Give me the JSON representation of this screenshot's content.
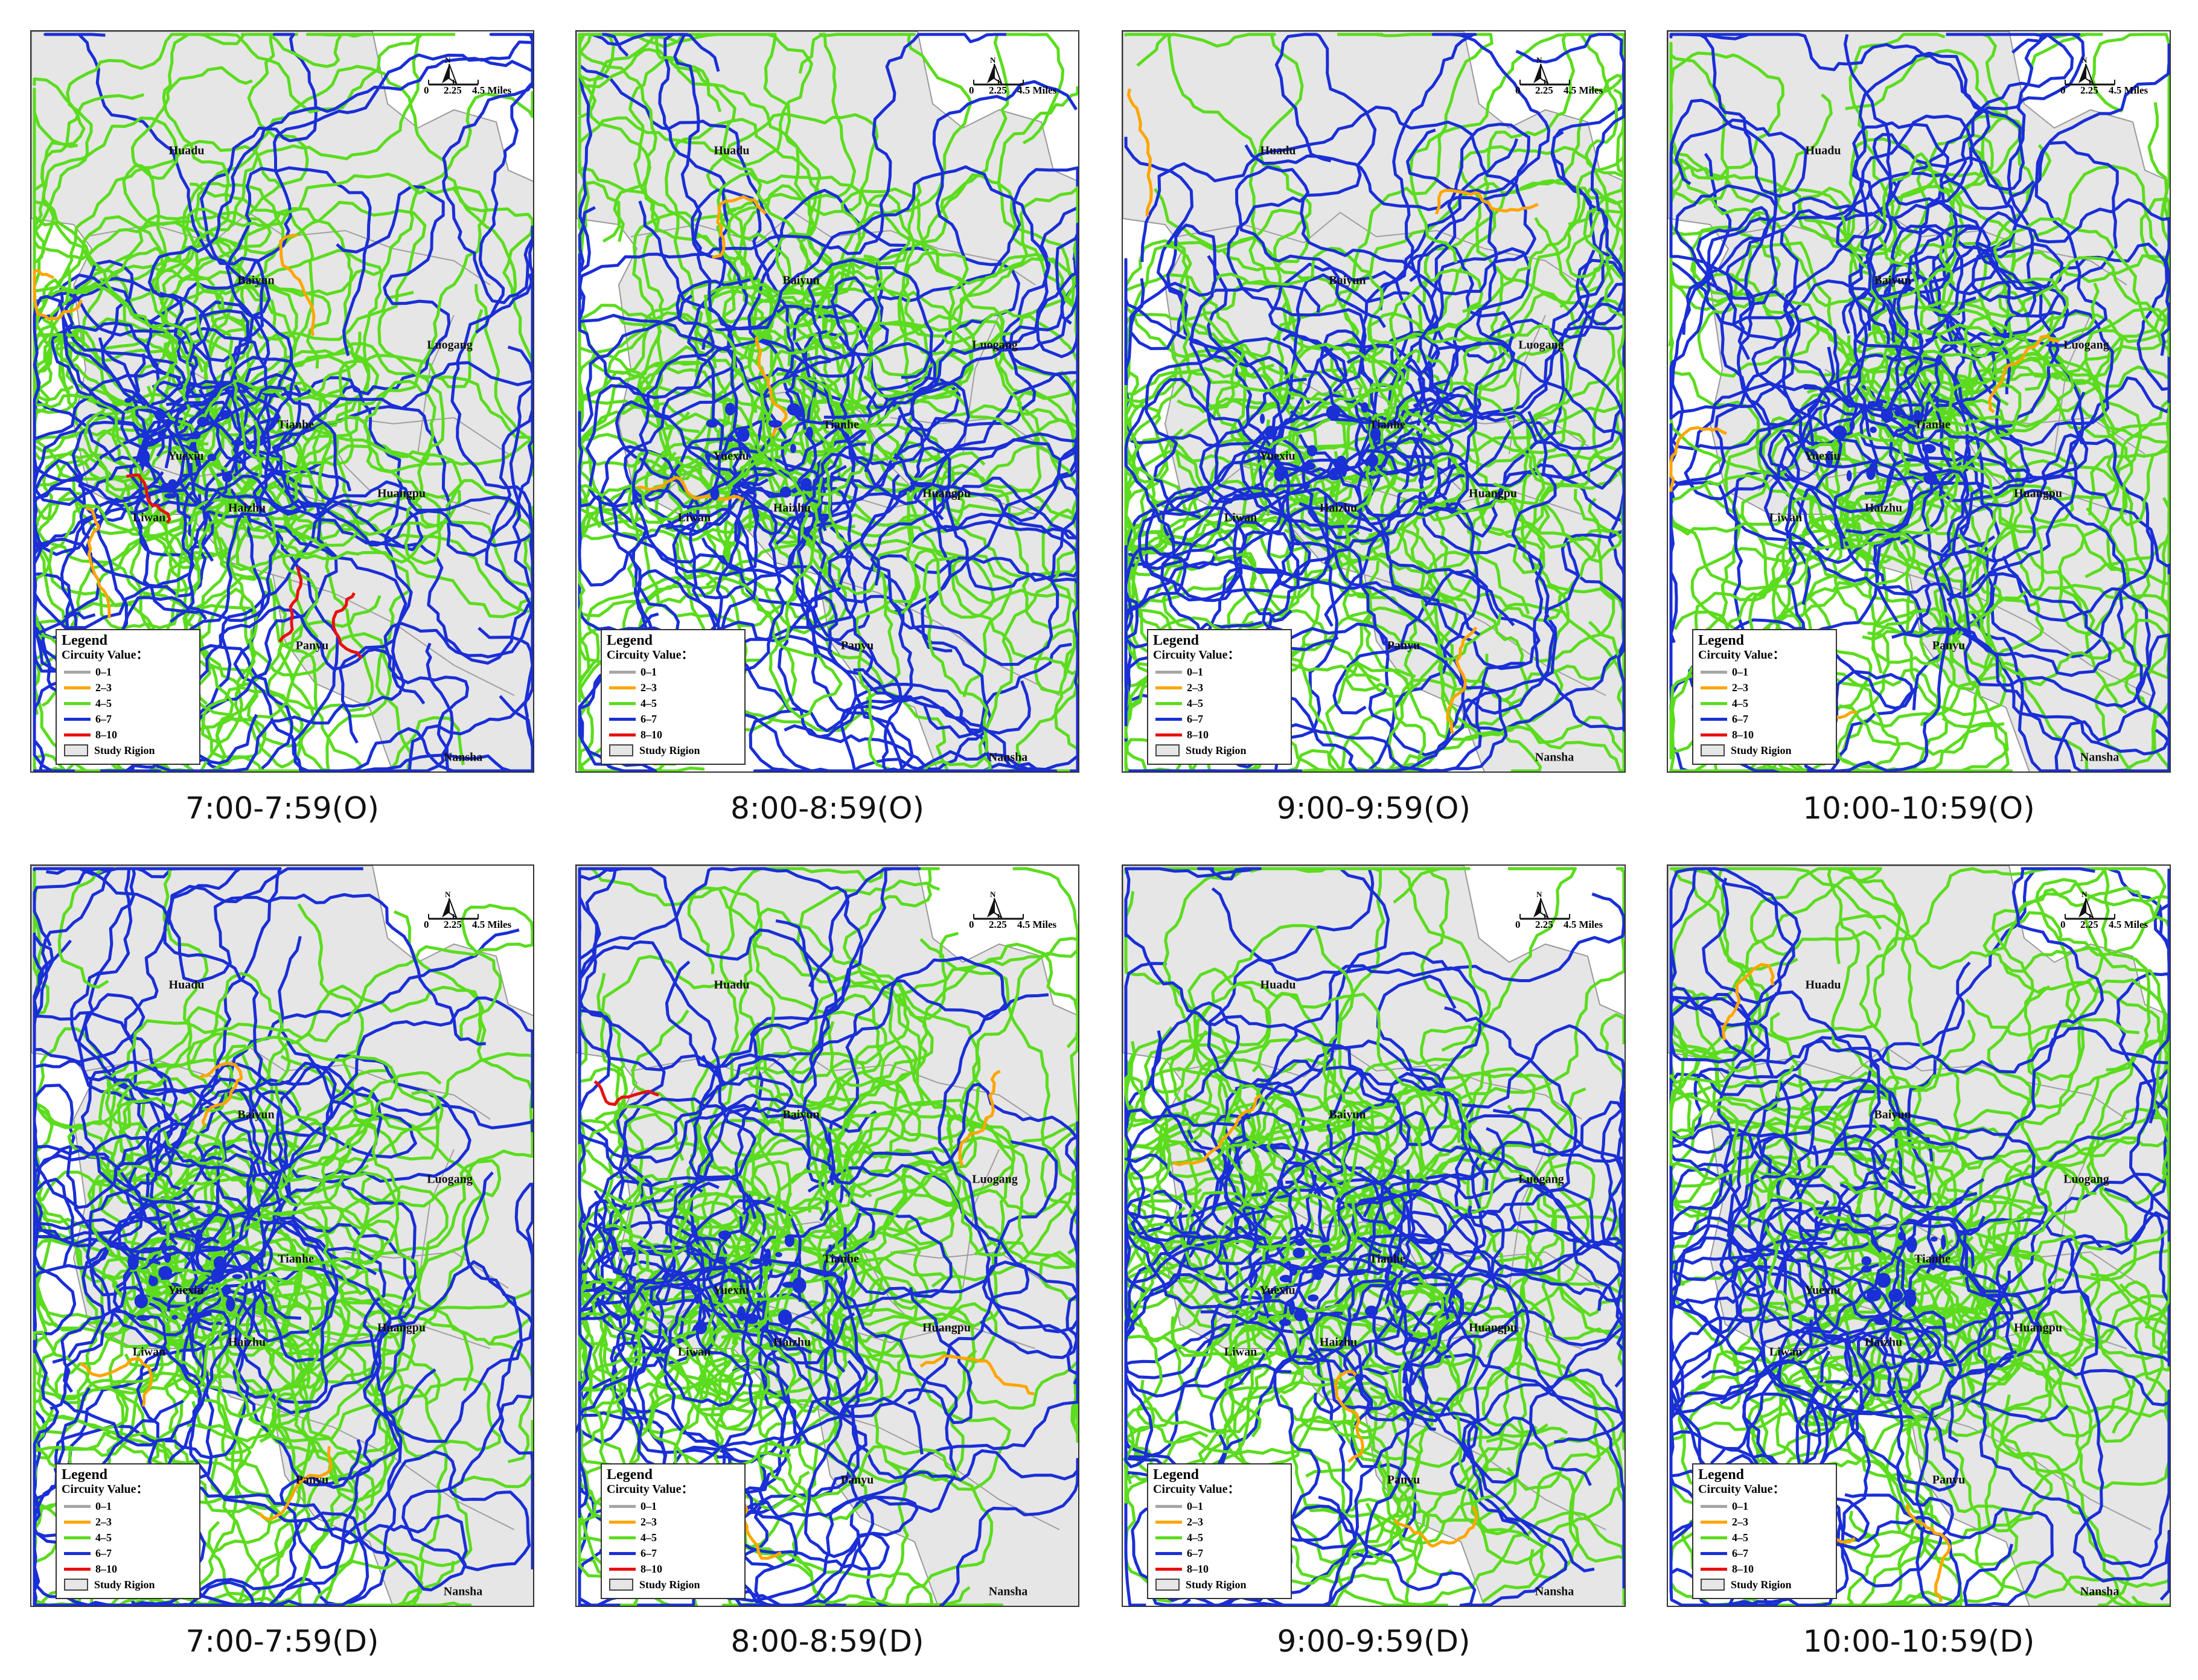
{
  "legend": {
    "title": "Legend",
    "subtitle": "Circuity Value：",
    "classes": [
      {
        "label": "0–1",
        "color": "#a6a6a6"
      },
      {
        "label": "2–3",
        "color": "#ffa500"
      },
      {
        "label": "4–5",
        "color": "#5bdc1e"
      },
      {
        "label": "6–7",
        "color": "#1a2fd6"
      },
      {
        "label": "8–10",
        "color": "#e81010"
      }
    ],
    "region_label": "Study Rigion"
  },
  "scale_bar": {
    "north": "N",
    "ticks": [
      "0",
      "2.25",
      "4.5"
    ],
    "unit": "Miles"
  },
  "districts": [
    "Huadu",
    "Baiyun",
    "Luogang",
    "Tianhe",
    "Yuexiu",
    "Liwan",
    "Haizhu",
    "Huangpu",
    "Panyu",
    "Nansha"
  ],
  "panels": [
    {
      "caption": "7:00-7:59(O)"
    },
    {
      "caption": "8:00-8:59(O)"
    },
    {
      "caption": "9:00-9:59(O)"
    },
    {
      "caption": "10:00-10:59(O)"
    },
    {
      "caption": "7:00-7:59(D)"
    },
    {
      "caption": "8:00-8:59(D)"
    },
    {
      "caption": "9:00-9:59(D)"
    },
    {
      "caption": "10:00-10:59(D)"
    }
  ]
}
